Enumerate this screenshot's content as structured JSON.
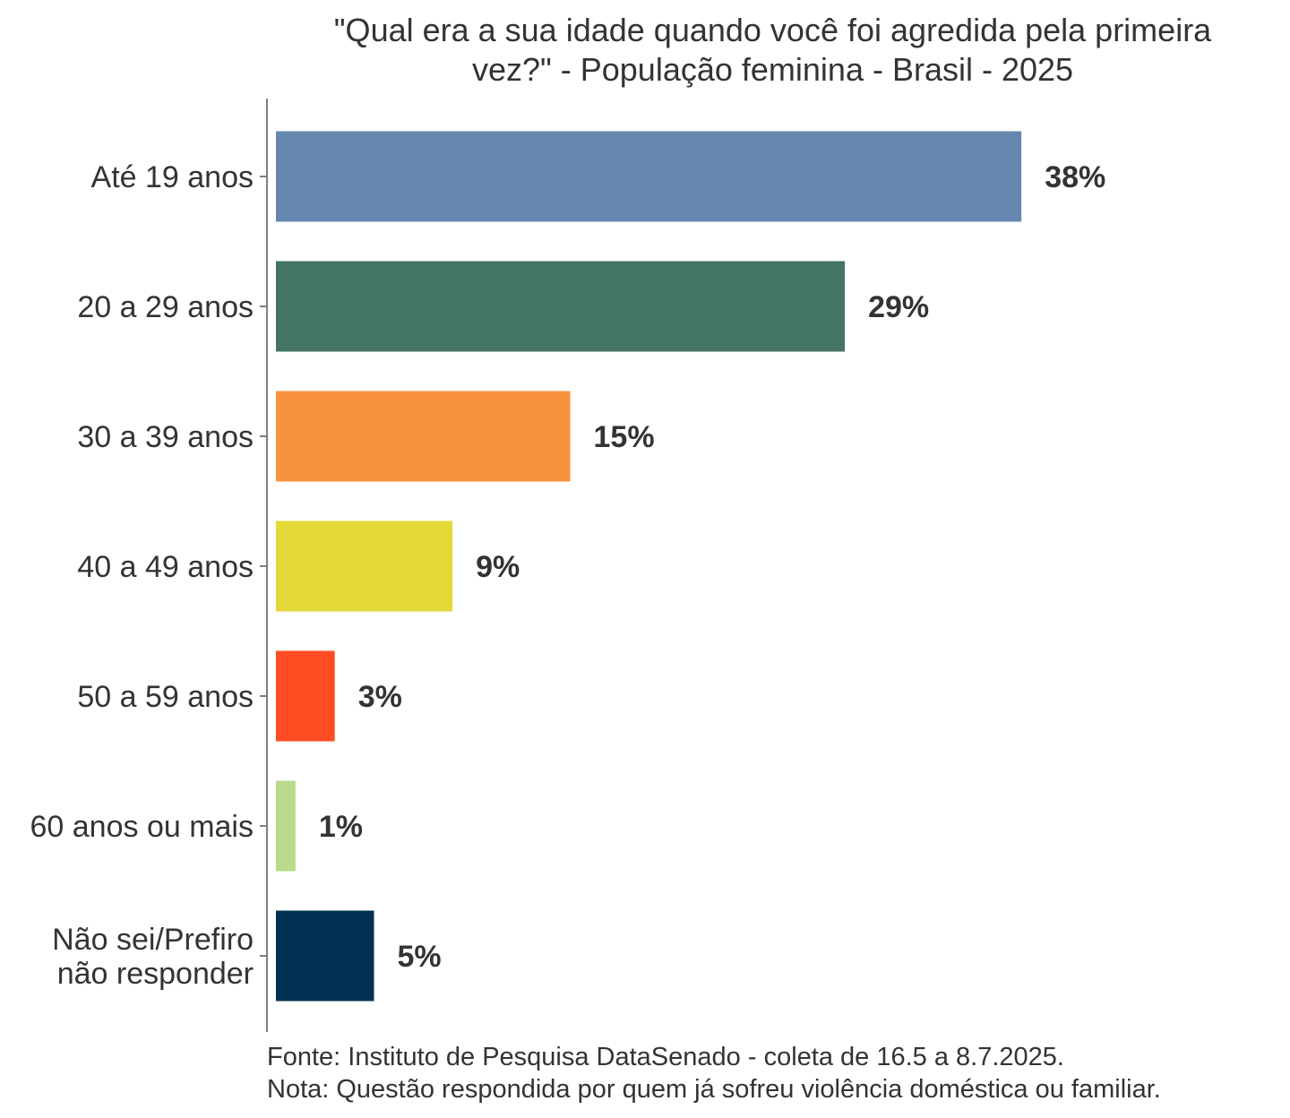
{
  "chart_data": {
    "type": "bar",
    "orientation": "horizontal",
    "title_line1": "\"Qual era a sua idade quando você foi agredida pela primeira",
    "title_line2": "vez?\" - População feminina - Brasil - 2025",
    "categories": [
      [
        "Até 19 anos"
      ],
      [
        "20 a 29 anos"
      ],
      [
        "30 a 39 anos"
      ],
      [
        "40 a 49 anos"
      ],
      [
        "50 a 59 anos"
      ],
      [
        "60 anos ou mais"
      ],
      [
        "Não sei/Prefiro",
        "não responder"
      ]
    ],
    "values": [
      38,
      29,
      15,
      9,
      3,
      1,
      5
    ],
    "value_labels": [
      "38%",
      "29%",
      "15%",
      "9%",
      "3%",
      "1%",
      "5%"
    ],
    "colors": [
      "#6688B0",
      "#447562",
      "#F9923E",
      "#E5D937",
      "#FF4C22",
      "#B9DC8C",
      "#003153"
    ],
    "unit": "%",
    "grid": false,
    "legend": "none"
  },
  "footer": {
    "source": "Fonte: Instituto de Pesquisa DataSenado - coleta de 16.5 a 8.7.2025.",
    "note": "Nota: Questão respondida por quem já sofreu violência doméstica ou familiar."
  }
}
